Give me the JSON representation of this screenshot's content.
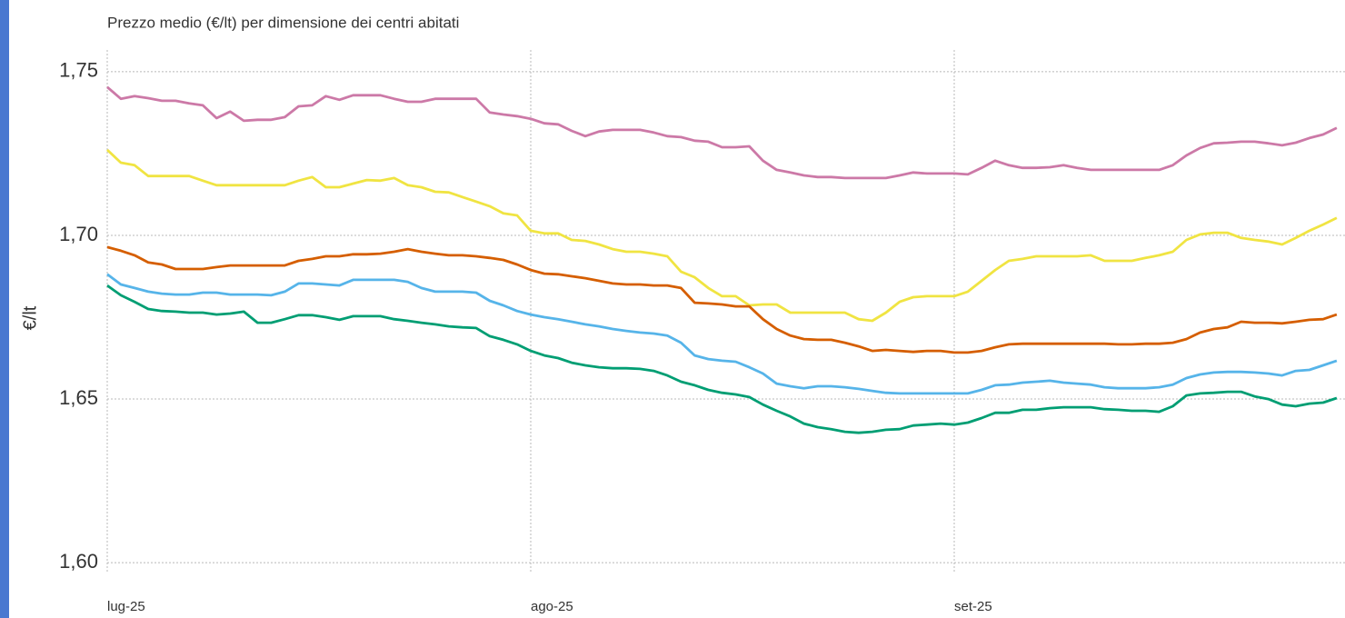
{
  "chart_data": {
    "type": "line",
    "title": "Prezzo medio (€/lt) per dimensione dei centri abitati",
    "y_label": "€/lt",
    "categories": [
      "lug-25",
      null,
      null,
      null,
      null,
      null,
      null,
      null,
      null,
      null,
      null,
      null,
      null,
      null,
      null,
      null,
      null,
      null,
      null,
      null,
      null,
      null,
      null,
      null,
      null,
      null,
      null,
      null,
      null,
      null,
      null,
      "ago-25",
      null,
      null,
      null,
      null,
      null,
      null,
      null,
      null,
      null,
      null,
      null,
      null,
      null,
      null,
      null,
      null,
      null,
      null,
      null,
      null,
      null,
      null,
      null,
      null,
      null,
      null,
      null,
      null,
      null,
      null,
      "set-25",
      null,
      null,
      null,
      null,
      null,
      null,
      null,
      null,
      null,
      null,
      null,
      null,
      null,
      null,
      null,
      null,
      null,
      null,
      null,
      null,
      null,
      null,
      null,
      null,
      null,
      null,
      null,
      null
    ],
    "series": [
      {
        "color": "#cc79a7",
        "values": [
          1.7453,
          1.7417,
          1.7425,
          1.7419,
          1.7411,
          1.7411,
          1.7403,
          1.7397,
          1.7358,
          1.7378,
          1.735,
          1.7353,
          1.7353,
          1.7361,
          1.7394,
          1.7397,
          1.7425,
          1.7414,
          1.7428,
          1.7428,
          1.7428,
          1.7417,
          1.7408,
          1.7408,
          1.7417,
          1.7417,
          1.7417,
          1.7417,
          1.7375,
          1.7369,
          1.7364,
          1.7356,
          1.7342,
          1.7339,
          1.7319,
          1.7303,
          1.7317,
          1.7322,
          1.7322,
          1.7322,
          1.7314,
          1.7303,
          1.73,
          1.7289,
          1.7286,
          1.7269,
          1.7269,
          1.7272,
          1.7228,
          1.72,
          1.7192,
          1.7183,
          1.7178,
          1.7178,
          1.7175,
          1.7175,
          1.7175,
          1.7175,
          1.7183,
          1.7192,
          1.7189,
          1.7189,
          1.7189,
          1.7186,
          1.7206,
          1.7228,
          1.7214,
          1.7206,
          1.7206,
          1.7208,
          1.7214,
          1.7206,
          1.72,
          1.72,
          1.72,
          1.72,
          1.72,
          1.72,
          1.7214,
          1.7244,
          1.7267,
          1.7281,
          1.7283,
          1.7286,
          1.7286,
          1.7281,
          1.7275,
          1.7283,
          1.7297,
          1.7308,
          1.7328
        ]
      },
      {
        "color": "#f0e442",
        "values": [
          1.7261,
          1.7222,
          1.7214,
          1.7181,
          1.7181,
          1.7181,
          1.7181,
          1.7167,
          1.7153,
          1.7153,
          1.7153,
          1.7153,
          1.7153,
          1.7153,
          1.7167,
          1.7178,
          1.7147,
          1.7147,
          1.7158,
          1.7169,
          1.7167,
          1.7175,
          1.7153,
          1.7147,
          1.7133,
          1.7131,
          1.7117,
          1.7103,
          1.7089,
          1.7067,
          1.7061,
          1.7014,
          1.7006,
          1.7006,
          1.6986,
          1.6983,
          1.6972,
          1.6958,
          1.695,
          1.695,
          1.6944,
          1.6936,
          1.6889,
          1.6872,
          1.6839,
          1.6814,
          1.6814,
          1.6786,
          1.6789,
          1.6789,
          1.6764,
          1.6764,
          1.6764,
          1.6764,
          1.6764,
          1.6744,
          1.6739,
          1.6764,
          1.6797,
          1.6811,
          1.6814,
          1.6814,
          1.6814,
          1.6828,
          1.6861,
          1.6894,
          1.6922,
          1.6928,
          1.6936,
          1.6936,
          1.6936,
          1.6936,
          1.6939,
          1.6922,
          1.6922,
          1.6922,
          1.6931,
          1.6939,
          1.695,
          1.6986,
          1.7003,
          1.7008,
          1.7008,
          1.6992,
          1.6986,
          1.6981,
          1.6972,
          1.6992,
          1.7014,
          1.7033,
          1.7053
        ]
      },
      {
        "color": "#d55e00",
        "values": [
          1.6964,
          1.6953,
          1.6939,
          1.6917,
          1.6911,
          1.6897,
          1.6897,
          1.6897,
          1.6903,
          1.6908,
          1.6908,
          1.6908,
          1.6908,
          1.6908,
          1.6922,
          1.6928,
          1.6936,
          1.6936,
          1.6942,
          1.6942,
          1.6944,
          1.695,
          1.6958,
          1.695,
          1.6944,
          1.6939,
          1.6939,
          1.6936,
          1.6931,
          1.6925,
          1.6911,
          1.6894,
          1.6883,
          1.6881,
          1.6875,
          1.6869,
          1.6861,
          1.6853,
          1.685,
          1.685,
          1.6847,
          1.6847,
          1.6839,
          1.6794,
          1.6792,
          1.6789,
          1.6783,
          1.6783,
          1.6744,
          1.6714,
          1.6694,
          1.6683,
          1.6681,
          1.6681,
          1.6672,
          1.6661,
          1.6647,
          1.665,
          1.6647,
          1.6644,
          1.6647,
          1.6647,
          1.6642,
          1.6642,
          1.6647,
          1.6658,
          1.6667,
          1.6669,
          1.6669,
          1.6669,
          1.6669,
          1.6669,
          1.6669,
          1.6669,
          1.6667,
          1.6667,
          1.6669,
          1.6669,
          1.6672,
          1.6683,
          1.6703,
          1.6714,
          1.6719,
          1.6736,
          1.6733,
          1.6733,
          1.6731,
          1.6736,
          1.6742,
          1.6744,
          1.6758
        ]
      },
      {
        "color": "#56b4e9",
        "values": [
          1.6881,
          1.685,
          1.6839,
          1.6828,
          1.6822,
          1.6819,
          1.6819,
          1.6825,
          1.6825,
          1.6819,
          1.6819,
          1.6819,
          1.6817,
          1.6828,
          1.6853,
          1.6853,
          1.685,
          1.6847,
          1.6864,
          1.6864,
          1.6864,
          1.6864,
          1.6858,
          1.6839,
          1.6828,
          1.6828,
          1.6828,
          1.6825,
          1.68,
          1.6786,
          1.6769,
          1.6758,
          1.675,
          1.6744,
          1.6736,
          1.6728,
          1.6722,
          1.6714,
          1.6708,
          1.6703,
          1.67,
          1.6694,
          1.6672,
          1.6633,
          1.6622,
          1.6617,
          1.6614,
          1.6597,
          1.6578,
          1.6547,
          1.6539,
          1.6533,
          1.6539,
          1.6539,
          1.6536,
          1.6531,
          1.6525,
          1.6519,
          1.6517,
          1.6517,
          1.6517,
          1.6517,
          1.6517,
          1.6517,
          1.6528,
          1.6542,
          1.6544,
          1.655,
          1.6553,
          1.6556,
          1.655,
          1.6547,
          1.6544,
          1.6536,
          1.6533,
          1.6533,
          1.6533,
          1.6536,
          1.6544,
          1.6564,
          1.6575,
          1.6581,
          1.6583,
          1.6583,
          1.6581,
          1.6578,
          1.6572,
          1.6586,
          1.6589,
          1.6603,
          1.6617
        ]
      },
      {
        "color": "#009e73",
        "values": [
          1.6847,
          1.6817,
          1.6797,
          1.6775,
          1.6769,
          1.6767,
          1.6764,
          1.6764,
          1.6758,
          1.6761,
          1.6767,
          1.6733,
          1.6733,
          1.6744,
          1.6756,
          1.6756,
          1.675,
          1.6742,
          1.6753,
          1.6753,
          1.6753,
          1.6744,
          1.6739,
          1.6733,
          1.6728,
          1.6722,
          1.6719,
          1.6717,
          1.6692,
          1.6681,
          1.6667,
          1.6647,
          1.6633,
          1.6625,
          1.6611,
          1.6603,
          1.6597,
          1.6594,
          1.6594,
          1.6592,
          1.6586,
          1.6572,
          1.6553,
          1.6542,
          1.6528,
          1.6519,
          1.6514,
          1.6506,
          1.6483,
          1.6464,
          1.6447,
          1.6425,
          1.6414,
          1.6408,
          1.64,
          1.6397,
          1.64,
          1.6406,
          1.6408,
          1.6419,
          1.6422,
          1.6425,
          1.6422,
          1.6428,
          1.6442,
          1.6458,
          1.6458,
          1.6467,
          1.6467,
          1.6472,
          1.6475,
          1.6475,
          1.6475,
          1.6469,
          1.6467,
          1.6464,
          1.6464,
          1.6461,
          1.6478,
          1.6511,
          1.6517,
          1.6519,
          1.6522,
          1.6522,
          1.6508,
          1.65,
          1.6483,
          1.6478,
          1.6486,
          1.6489,
          1.6503
        ]
      }
    ],
    "ylim": [
      1.592,
      1.758
    ],
    "yticks": [
      {
        "value": 1.6,
        "label": "1,60"
      },
      {
        "value": 1.65,
        "label": "1,65"
      },
      {
        "value": 1.7,
        "label": "1,70"
      },
      {
        "value": 1.75,
        "label": "1,75"
      }
    ],
    "grid": true
  }
}
